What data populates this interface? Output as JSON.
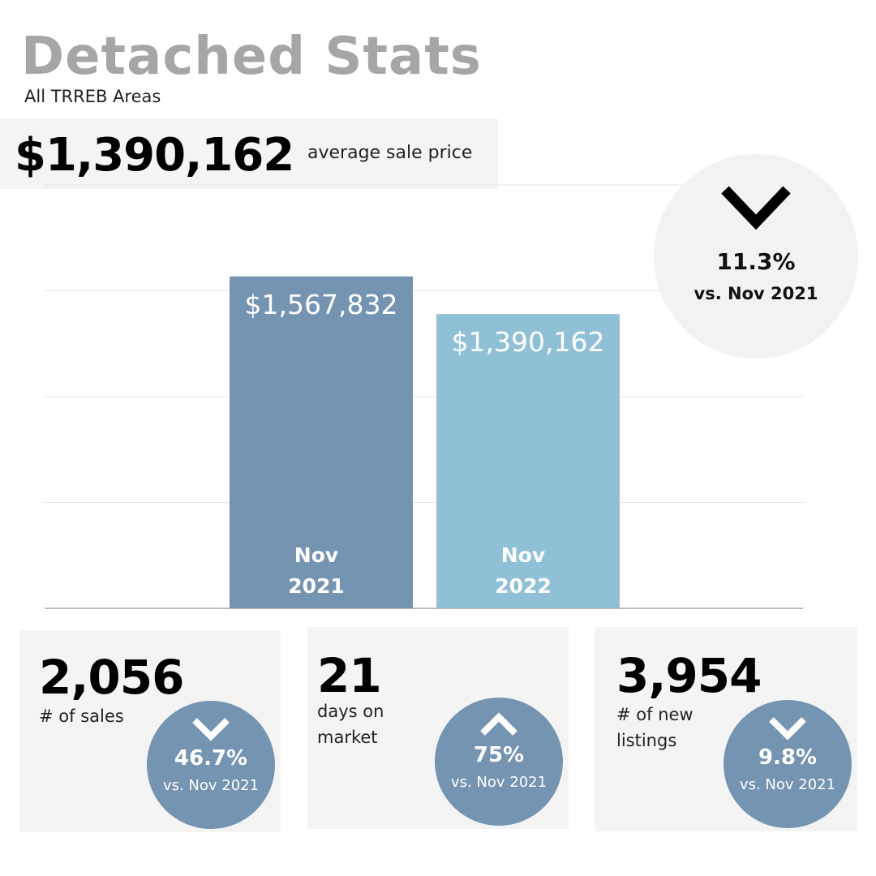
{
  "header": {
    "title": "Detached Stats",
    "subtitle": "All TRREB Areas"
  },
  "headline": {
    "value": "$1,390,162",
    "caption": "average sale price"
  },
  "change_bubble": {
    "direction": "down",
    "percent": "11.3%",
    "comparison": "vs. Nov 2021"
  },
  "chart_data": {
    "type": "bar",
    "categories": [
      "Nov 2021",
      "Nov 2022"
    ],
    "category_lines": [
      [
        "Nov",
        "2021"
      ],
      [
        "Nov",
        "2022"
      ]
    ],
    "values": [
      1567832,
      1390162
    ],
    "value_labels": [
      "$1,567,832",
      "$1,390,162"
    ],
    "colors": [
      "#7494b2",
      "#8fc0d5"
    ],
    "title": "",
    "xlabel": "",
    "ylabel": "",
    "ylim": [
      0,
      2000000
    ],
    "grid": true,
    "legend": "none"
  },
  "stats": [
    {
      "value": "2,056",
      "label_lines": [
        "# of sales"
      ],
      "direction": "down",
      "percent": "46.7%",
      "comparison": "vs. Nov 2021"
    },
    {
      "value": "21",
      "label_lines": [
        "days on",
        "market"
      ],
      "direction": "up",
      "percent": "75%",
      "comparison": "vs. Nov 2021"
    },
    {
      "value": "3,954",
      "label_lines": [
        "# of new",
        "listings"
      ],
      "direction": "down",
      "percent": "9.8%",
      "comparison": "vs. Nov 2021"
    }
  ],
  "colors": {
    "accent": "#7494b2",
    "accent_light": "#8fc0d5",
    "title_gray": "#a6a6a6",
    "panel": "#f4f4f4"
  }
}
